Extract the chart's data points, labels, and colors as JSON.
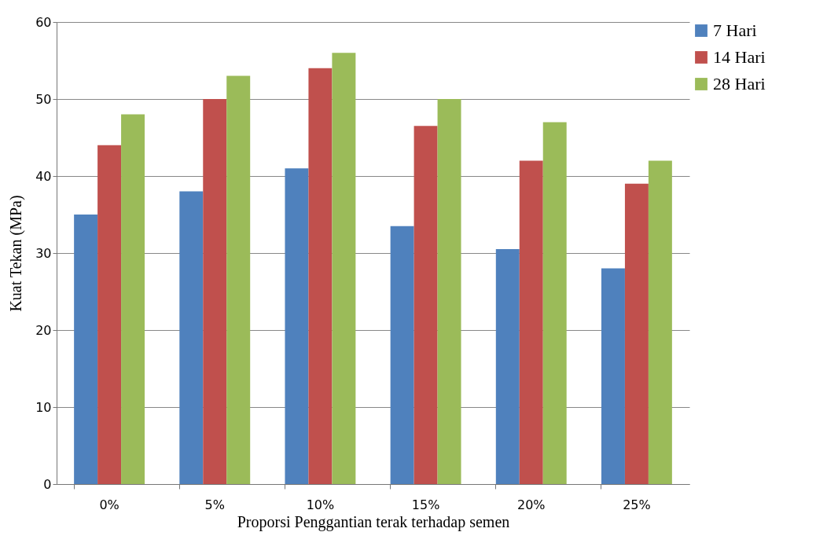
{
  "chart_data": {
    "type": "bar",
    "xlabel": "Proporsi Penggantian terak terhadap semen",
    "ylabel": "Kuat Tekan (MPa)",
    "categories": [
      "0%",
      "5%",
      "10%",
      "15%",
      "20%",
      "25%"
    ],
    "series": [
      {
        "name": "7 Hari",
        "color": "#4f81bd",
        "values": [
          35,
          38,
          41,
          33.5,
          30.5,
          28
        ]
      },
      {
        "name": "14 Hari",
        "color": "#c0504d",
        "values": [
          44,
          50,
          54,
          46.5,
          42,
          39
        ]
      },
      {
        "name": "28 Hari",
        "color": "#9bbb59",
        "values": [
          48,
          53,
          56,
          50,
          47,
          42
        ]
      }
    ],
    "ylim": [
      0,
      60
    ],
    "yticks": [
      0,
      10,
      20,
      30,
      40,
      50,
      60
    ],
    "grid": "y",
    "legend": "right"
  }
}
